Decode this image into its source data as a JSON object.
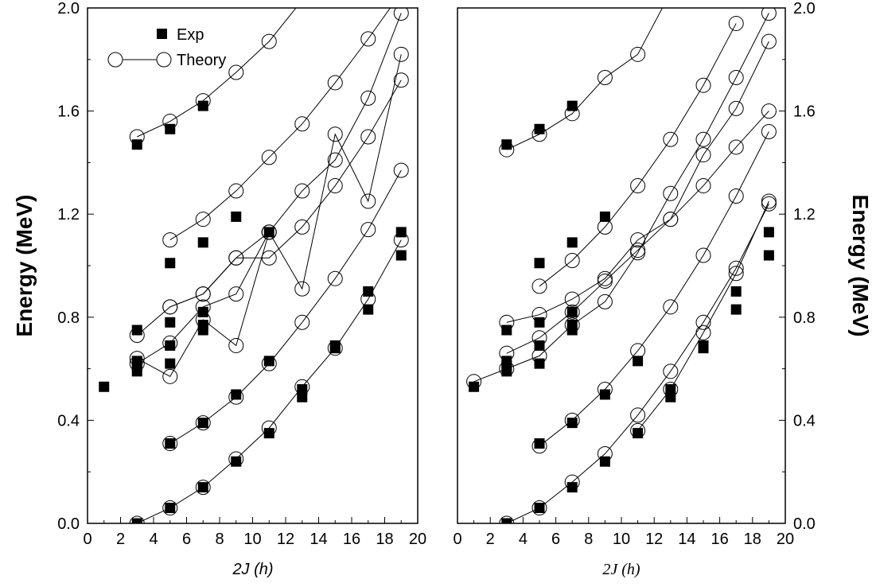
{
  "chart_data": [
    {
      "type": "scatter",
      "panel": "left",
      "xlabel": "2J (h)",
      "ylabel": "Energy (MeV)",
      "xlim": [
        0,
        20
      ],
      "ylim": [
        0,
        2.0
      ],
      "x_ticks": [
        "0",
        "2",
        "4",
        "6",
        "8",
        "10",
        "12",
        "14",
        "16",
        "18",
        "20"
      ],
      "y_ticks": [
        "0.0",
        "0.4",
        "0.8",
        "1.2",
        "1.6",
        "2.0"
      ],
      "legend": {
        "placement": "top-left",
        "exp_label": "Exp",
        "theory_label": "Theory"
      },
      "exp_points": [
        [
          1,
          0.53
        ],
        [
          3,
          0.0
        ],
        [
          3,
          0.59
        ],
        [
          3,
          0.61
        ],
        [
          3,
          0.63
        ],
        [
          3,
          0.75
        ],
        [
          3,
          1.47
        ],
        [
          5,
          0.06
        ],
        [
          5,
          0.31
        ],
        [
          5,
          0.62
        ],
        [
          5,
          0.69
        ],
        [
          5,
          0.78
        ],
        [
          5,
          1.01
        ],
        [
          5,
          1.53
        ],
        [
          7,
          0.14
        ],
        [
          7,
          0.39
        ],
        [
          7,
          0.75
        ],
        [
          7,
          0.77
        ],
        [
          7,
          0.82
        ],
        [
          7,
          1.09
        ],
        [
          7,
          1.62
        ],
        [
          9,
          0.24
        ],
        [
          9,
          0.5
        ],
        [
          9,
          1.19
        ],
        [
          11,
          0.35
        ],
        [
          11,
          0.63
        ],
        [
          11,
          1.13
        ],
        [
          13,
          0.49
        ],
        [
          13,
          0.52
        ],
        [
          15,
          0.68
        ],
        [
          15,
          0.69
        ],
        [
          17,
          0.83
        ],
        [
          17,
          0.9
        ],
        [
          19,
          1.04
        ],
        [
          19,
          1.13
        ]
      ],
      "theory_series": [
        {
          "points": [
            [
              3,
              0.0
            ],
            [
              5,
              0.06
            ],
            [
              7,
              0.14
            ],
            [
              9,
              0.25
            ],
            [
              11,
              0.37
            ],
            [
              13,
              0.53
            ],
            [
              15,
              0.68
            ],
            [
              17,
              0.87
            ],
            [
              19,
              1.1
            ]
          ]
        },
        {
          "points": [
            [
              5,
              0.31
            ],
            [
              7,
              0.39
            ],
            [
              9,
              0.49
            ],
            [
              11,
              0.62
            ],
            [
              13,
              0.78
            ],
            [
              15,
              0.95
            ],
            [
              17,
              1.14
            ],
            [
              19,
              1.37
            ]
          ]
        },
        {
          "points": [
            [
              3,
              0.64
            ],
            [
              5,
              0.57
            ],
            [
              7,
              0.79
            ],
            [
              9,
              0.69
            ],
            [
              11,
              1.13
            ],
            [
              13,
              0.91
            ],
            [
              15,
              1.51
            ],
            [
              17,
              1.25
            ],
            [
              19,
              1.82
            ]
          ]
        },
        {
          "points": [
            [
              3,
              0.62
            ],
            [
              5,
              0.7
            ],
            [
              7,
              0.84
            ],
            [
              9,
              0.89
            ],
            [
              11,
              1.13
            ]
          ]
        },
        {
          "points": [
            [
              5,
              0.84
            ],
            [
              7,
              0.89
            ],
            [
              9,
              1.03
            ],
            [
              11,
              1.03
            ],
            [
              13,
              1.15
            ],
            [
              15,
              1.31
            ],
            [
              17,
              1.5
            ],
            [
              19,
              1.72
            ]
          ]
        },
        {
          "points": [
            [
              3,
              0.73
            ],
            [
              5,
              0.84
            ],
            [
              7,
              0.89
            ],
            [
              9,
              1.03
            ],
            [
              11,
              1.13
            ],
            [
              13,
              1.29
            ],
            [
              15,
              1.41
            ],
            [
              17,
              1.65
            ],
            [
              19,
              1.98
            ]
          ]
        },
        {
          "points": [
            [
              5,
              1.1
            ],
            [
              7,
              1.18
            ],
            [
              9,
              1.29
            ],
            [
              11,
              1.42
            ],
            [
              13,
              1.55
            ],
            [
              15,
              1.71
            ],
            [
              17,
              1.88
            ],
            [
              19,
              2.06
            ]
          ]
        },
        {
          "points": [
            [
              3,
              1.5
            ],
            [
              5,
              1.56
            ],
            [
              7,
              1.64
            ],
            [
              9,
              1.75
            ],
            [
              11,
              1.87
            ],
            [
              13,
              2.03
            ]
          ]
        }
      ]
    },
    {
      "type": "scatter",
      "panel": "right",
      "xlabel": "2J (h)",
      "ylabel": "Energy (MeV)",
      "xlim": [
        0,
        20
      ],
      "ylim": [
        0,
        2.0
      ],
      "x_ticks": [
        "0",
        "2",
        "4",
        "6",
        "8",
        "10",
        "12",
        "14",
        "16",
        "18",
        "20"
      ],
      "y_ticks": [
        "0.0",
        "0.4",
        "0.8",
        "1.2",
        "1.6",
        "2.0"
      ],
      "exp_points": [
        [
          1,
          0.53
        ],
        [
          3,
          0.0
        ],
        [
          3,
          0.59
        ],
        [
          3,
          0.61
        ],
        [
          3,
          0.63
        ],
        [
          3,
          0.75
        ],
        [
          3,
          1.47
        ],
        [
          5,
          0.06
        ],
        [
          5,
          0.31
        ],
        [
          5,
          0.62
        ],
        [
          5,
          0.69
        ],
        [
          5,
          0.78
        ],
        [
          5,
          1.01
        ],
        [
          5,
          1.53
        ],
        [
          7,
          0.14
        ],
        [
          7,
          0.39
        ],
        [
          7,
          0.75
        ],
        [
          7,
          0.77
        ],
        [
          7,
          0.82
        ],
        [
          7,
          1.09
        ],
        [
          7,
          1.62
        ],
        [
          9,
          0.24
        ],
        [
          9,
          0.5
        ],
        [
          9,
          1.19
        ],
        [
          11,
          0.35
        ],
        [
          11,
          0.63
        ],
        [
          13,
          0.49
        ],
        [
          13,
          0.52
        ],
        [
          15,
          0.68
        ],
        [
          15,
          0.69
        ],
        [
          17,
          0.83
        ],
        [
          17,
          0.9
        ],
        [
          19,
          1.04
        ],
        [
          19,
          1.13
        ]
      ],
      "theory_series": [
        {
          "points": [
            [
              3,
              0.0
            ],
            [
              5,
              0.06
            ],
            [
              7,
              0.16
            ],
            [
              9,
              0.27
            ],
            [
              11,
              0.42
            ],
            [
              13,
              0.59
            ],
            [
              15,
              0.78
            ],
            [
              17,
              0.99
            ],
            [
              19,
              1.24
            ]
          ]
        },
        {
          "points": [
            [
              11,
              0.36
            ],
            [
              13,
              0.52
            ],
            [
              15,
              0.74
            ],
            [
              17,
              0.97
            ],
            [
              19,
              1.25
            ]
          ]
        },
        {
          "points": [
            [
              5,
              0.3
            ],
            [
              7,
              0.4
            ],
            [
              9,
              0.52
            ],
            [
              11,
              0.67
            ],
            [
              13,
              0.84
            ],
            [
              15,
              1.04
            ],
            [
              17,
              1.27
            ],
            [
              19,
              1.52
            ]
          ]
        },
        {
          "points": [
            [
              1,
              0.55
            ],
            [
              3,
              0.6
            ],
            [
              5,
              0.65
            ],
            [
              7,
              0.77
            ],
            [
              9,
              0.86
            ],
            [
              11,
              1.05
            ],
            [
              13,
              1.28
            ],
            [
              15,
              1.49
            ],
            [
              17,
              1.73
            ],
            [
              19,
              1.98
            ]
          ]
        },
        {
          "points": [
            [
              3,
              0.66
            ],
            [
              5,
              0.72
            ],
            [
              7,
              0.82
            ],
            [
              9,
              0.94
            ],
            [
              11,
              1.06
            ],
            [
              13,
              1.18
            ],
            [
              15,
              1.31
            ],
            [
              17,
              1.46
            ],
            [
              19,
              1.6
            ]
          ]
        },
        {
          "points": [
            [
              3,
              0.78
            ],
            [
              5,
              0.81
            ],
            [
              7,
              0.87
            ],
            [
              9,
              0.95
            ],
            [
              11,
              1.1
            ],
            [
              13,
              1.18
            ],
            [
              15,
              1.43
            ],
            [
              17,
              1.61
            ],
            [
              19,
              1.87
            ]
          ]
        },
        {
          "points": [
            [
              5,
              0.92
            ],
            [
              7,
              1.02
            ],
            [
              9,
              1.15
            ],
            [
              11,
              1.31
            ],
            [
              13,
              1.49
            ],
            [
              15,
              1.7
            ],
            [
              17,
              1.94
            ]
          ]
        },
        {
          "points": [
            [
              3,
              1.45
            ],
            [
              5,
              1.51
            ],
            [
              7,
              1.59
            ],
            [
              9,
              1.73
            ],
            [
              11,
              1.82
            ],
            [
              13,
              2.06
            ]
          ]
        }
      ]
    }
  ]
}
